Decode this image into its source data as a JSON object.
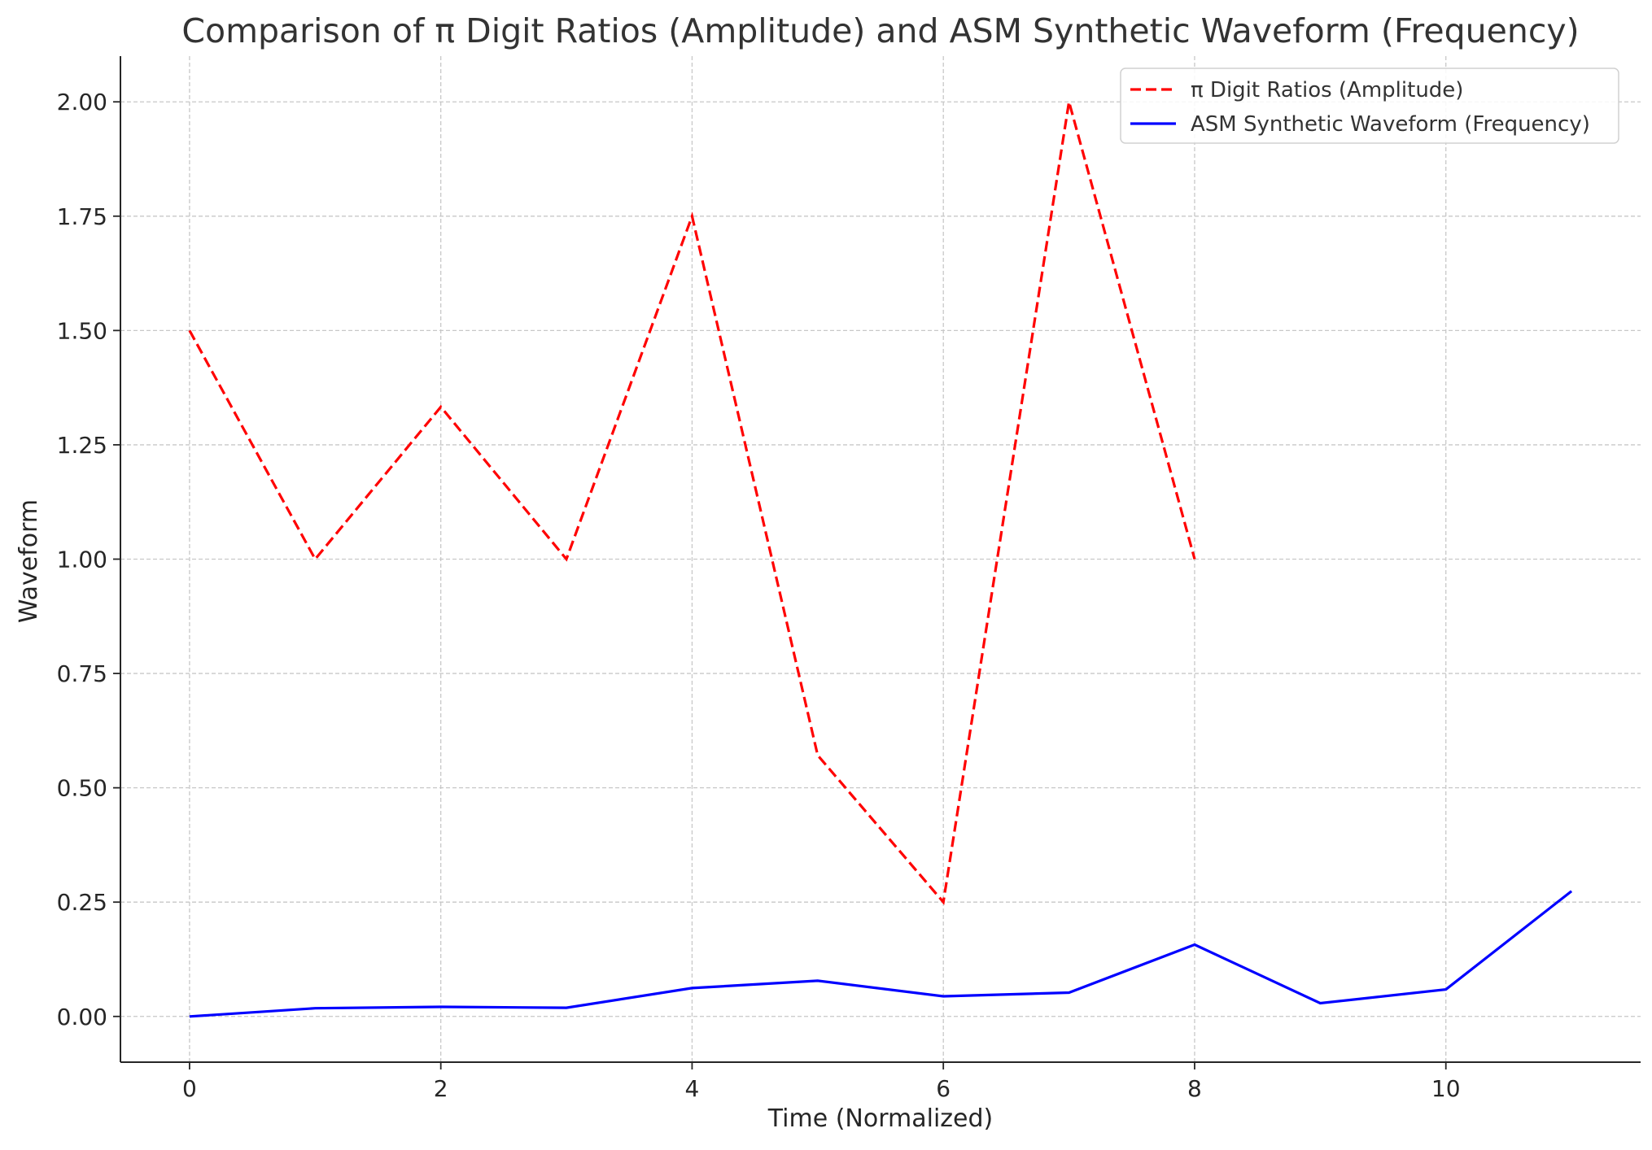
{
  "chart_data": {
    "type": "line",
    "title": "Comparison of π Digit Ratios (Amplitude) and ASM Synthetic Waveform (Frequency)",
    "xlabel": "Time (Normalized)",
    "ylabel": "Waveform",
    "xlim": [
      -0.55,
      11.55
    ],
    "ylim": [
      -0.1,
      2.1
    ],
    "xticks": [
      0,
      2,
      4,
      6,
      8,
      10
    ],
    "xtick_labels": [
      "0",
      "2",
      "4",
      "6",
      "8",
      "10"
    ],
    "yticks": [
      0.0,
      0.25,
      0.5,
      0.75,
      1.0,
      1.25,
      1.5,
      1.75,
      2.0
    ],
    "ytick_labels": [
      "0.00",
      "0.25",
      "0.50",
      "0.75",
      "1.00",
      "1.25",
      "1.50",
      "1.75",
      "2.00"
    ],
    "grid": true,
    "legend_position": "top-right",
    "series": [
      {
        "name": "π Digit Ratios (Amplitude)",
        "color": "#ff0000",
        "line_style": "dashed",
        "x": [
          0,
          1,
          2,
          3,
          4,
          5,
          6,
          7,
          8
        ],
        "y": [
          1.5,
          1.0,
          1.333,
          1.0,
          1.75,
          0.571,
          0.25,
          2.0,
          1.0
        ]
      },
      {
        "name": "ASM Synthetic Waveform (Frequency)",
        "color": "#0000ff",
        "line_style": "solid",
        "x": [
          0,
          1,
          2,
          3,
          4,
          5,
          6,
          7,
          8,
          9,
          10,
          11
        ],
        "y": [
          0.0,
          0.018,
          0.021,
          0.019,
          0.062,
          0.078,
          0.044,
          0.052,
          0.157,
          0.029,
          0.059,
          0.274
        ]
      }
    ]
  }
}
